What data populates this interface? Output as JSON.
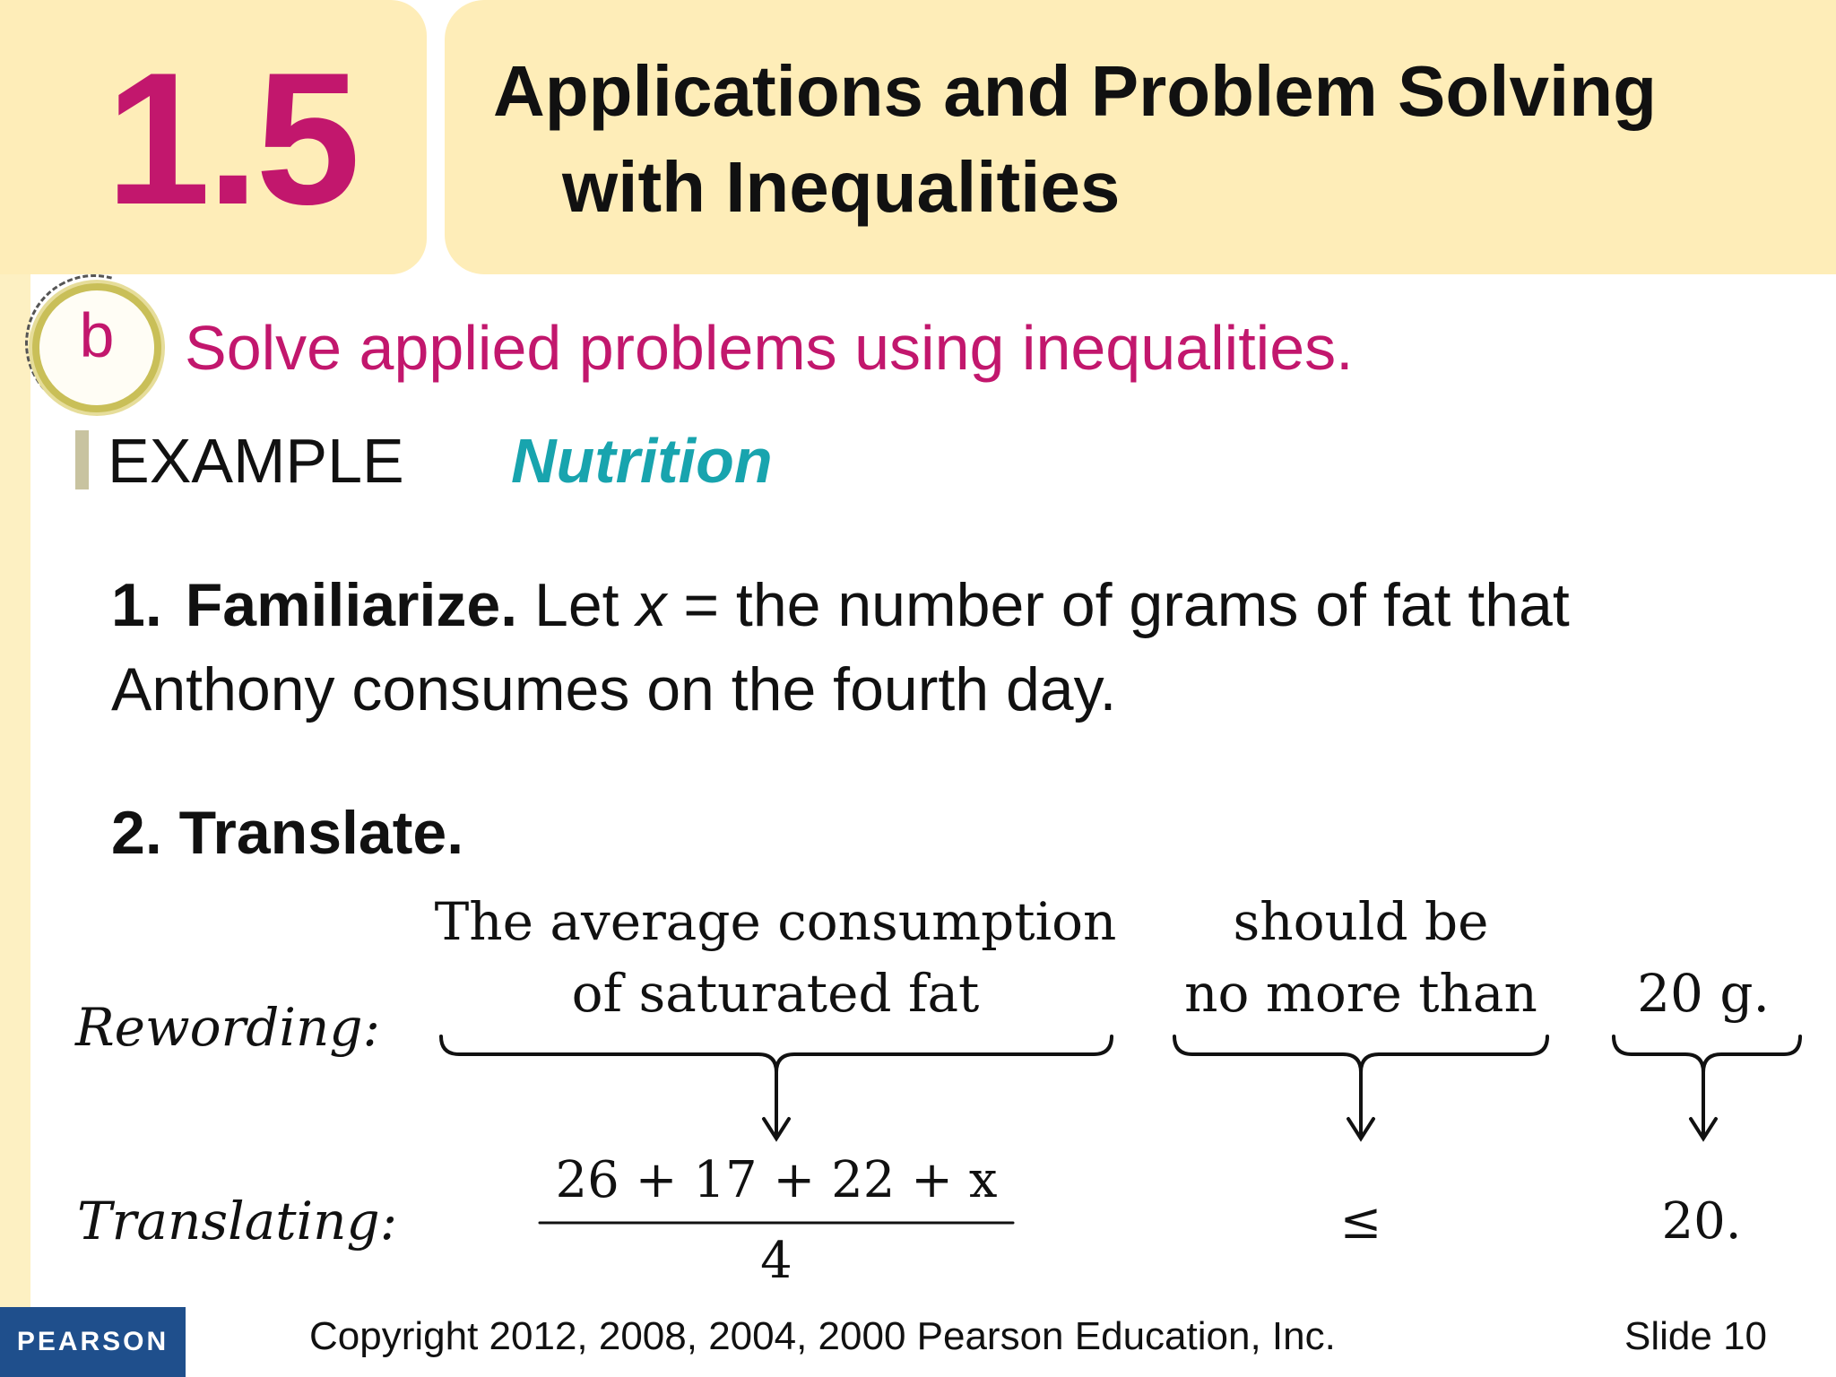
{
  "header": {
    "section_number": "1.5",
    "title_line1": "Applications and Problem Solving",
    "title_line2": "with Inequalities"
  },
  "objective": {
    "letter": "b",
    "text": "Solve applied problems using inequalities."
  },
  "example": {
    "label": "EXAMPLE",
    "topic": "Nutrition"
  },
  "steps": {
    "step1_number": "1.",
    "step1_bold": "Familiarize.",
    "step1_text_a": " Let ",
    "step1_var": "x",
    "step1_text_b": " = the number of grams of fat that",
    "step1_line2": "Anthony consumes on the fourth day.",
    "step2": "2. Translate."
  },
  "translation": {
    "rewording_label": "Rewording:",
    "translating_label": "Translating:",
    "phrase1_line1": "The average consumption",
    "phrase1_line2": "of saturated fat",
    "phrase2_line1": "should be",
    "phrase2_line2": "no more than",
    "phrase3": "20 g.",
    "numerator": "26 + 17 + 22 + x",
    "denominator": "4",
    "symbol": "≤",
    "rhs": "20."
  },
  "footer": {
    "logo": "PEARSON",
    "copyright": "Copyright 2012, 2008, 2004, 2000 Pearson Education, Inc.",
    "slide": "Slide 10"
  }
}
